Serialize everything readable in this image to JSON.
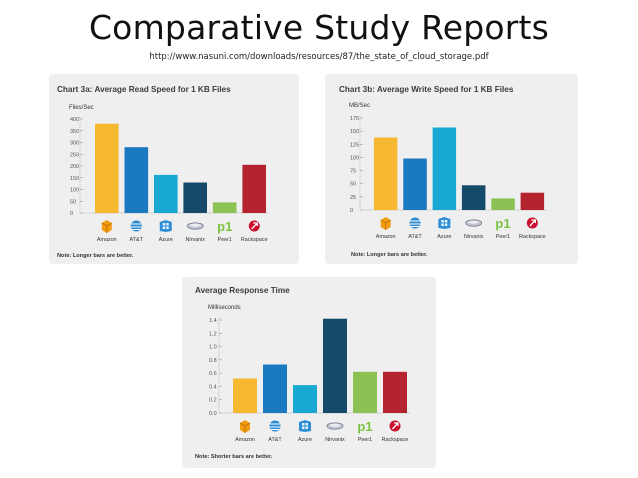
{
  "slide": {
    "title": "Comparative Study Reports",
    "url": "http://www.nasuni.com/downloads/resources/87/the_state_of_cloud_storage.pdf"
  },
  "colors": {
    "Amazon": "#f6b830",
    "AT&T": "#1b79c2",
    "Azure": "#18a9d2",
    "Nirvanix": "#164a6a",
    "Peer1": "#8cc154",
    "Rackspace": "#b3242e"
  },
  "chart_data": [
    {
      "type": "bar",
      "title": "Chart 3a: Average Read Speed for 1 KB Files",
      "ylabel": "Files/Sec",
      "categories": [
        "Amazon",
        "AT&T",
        "Azure",
        "Nirvanix",
        "Peer1",
        "Rackspace"
      ],
      "values": [
        380,
        280,
        162,
        130,
        45,
        205
      ],
      "ylim": [
        0,
        400
      ],
      "yticks": [
        "0",
        "50",
        "100",
        "150",
        "200",
        "250",
        "300",
        "350",
        "400"
      ],
      "note": "Note: Longer bars are better."
    },
    {
      "type": "bar",
      "title": "Chart 3b: Average Write Speed for 1 KB Files",
      "ylabel": "MB/Sec",
      "categories": [
        "Amazon",
        "AT&T",
        "Azure",
        "Nirvanix",
        "Peer1",
        "Rackspace"
      ],
      "values": [
        138,
        98,
        157,
        47,
        22,
        33
      ],
      "ylim": [
        0,
        175
      ],
      "yticks": [
        "0",
        "25",
        "50",
        "75",
        "100",
        "125",
        "150",
        "175"
      ],
      "note": "Note: Longer bars are better."
    },
    {
      "type": "bar",
      "title": "Average Response Time",
      "ylabel": "Milliseconds",
      "categories": [
        "Amazon",
        "AT&T",
        "Azure",
        "Nirvanix",
        "Peer1",
        "Rackspace"
      ],
      "values": [
        0.52,
        0.73,
        0.42,
        1.42,
        0.62,
        0.62
      ],
      "ylim": [
        0,
        1.4
      ],
      "yticks": [
        "0.0",
        "0.2",
        "0.4",
        "0.6",
        "0.8",
        "1.0",
        "1.2",
        "1.4"
      ],
      "note": "Note: Shorter bars are better."
    }
  ]
}
